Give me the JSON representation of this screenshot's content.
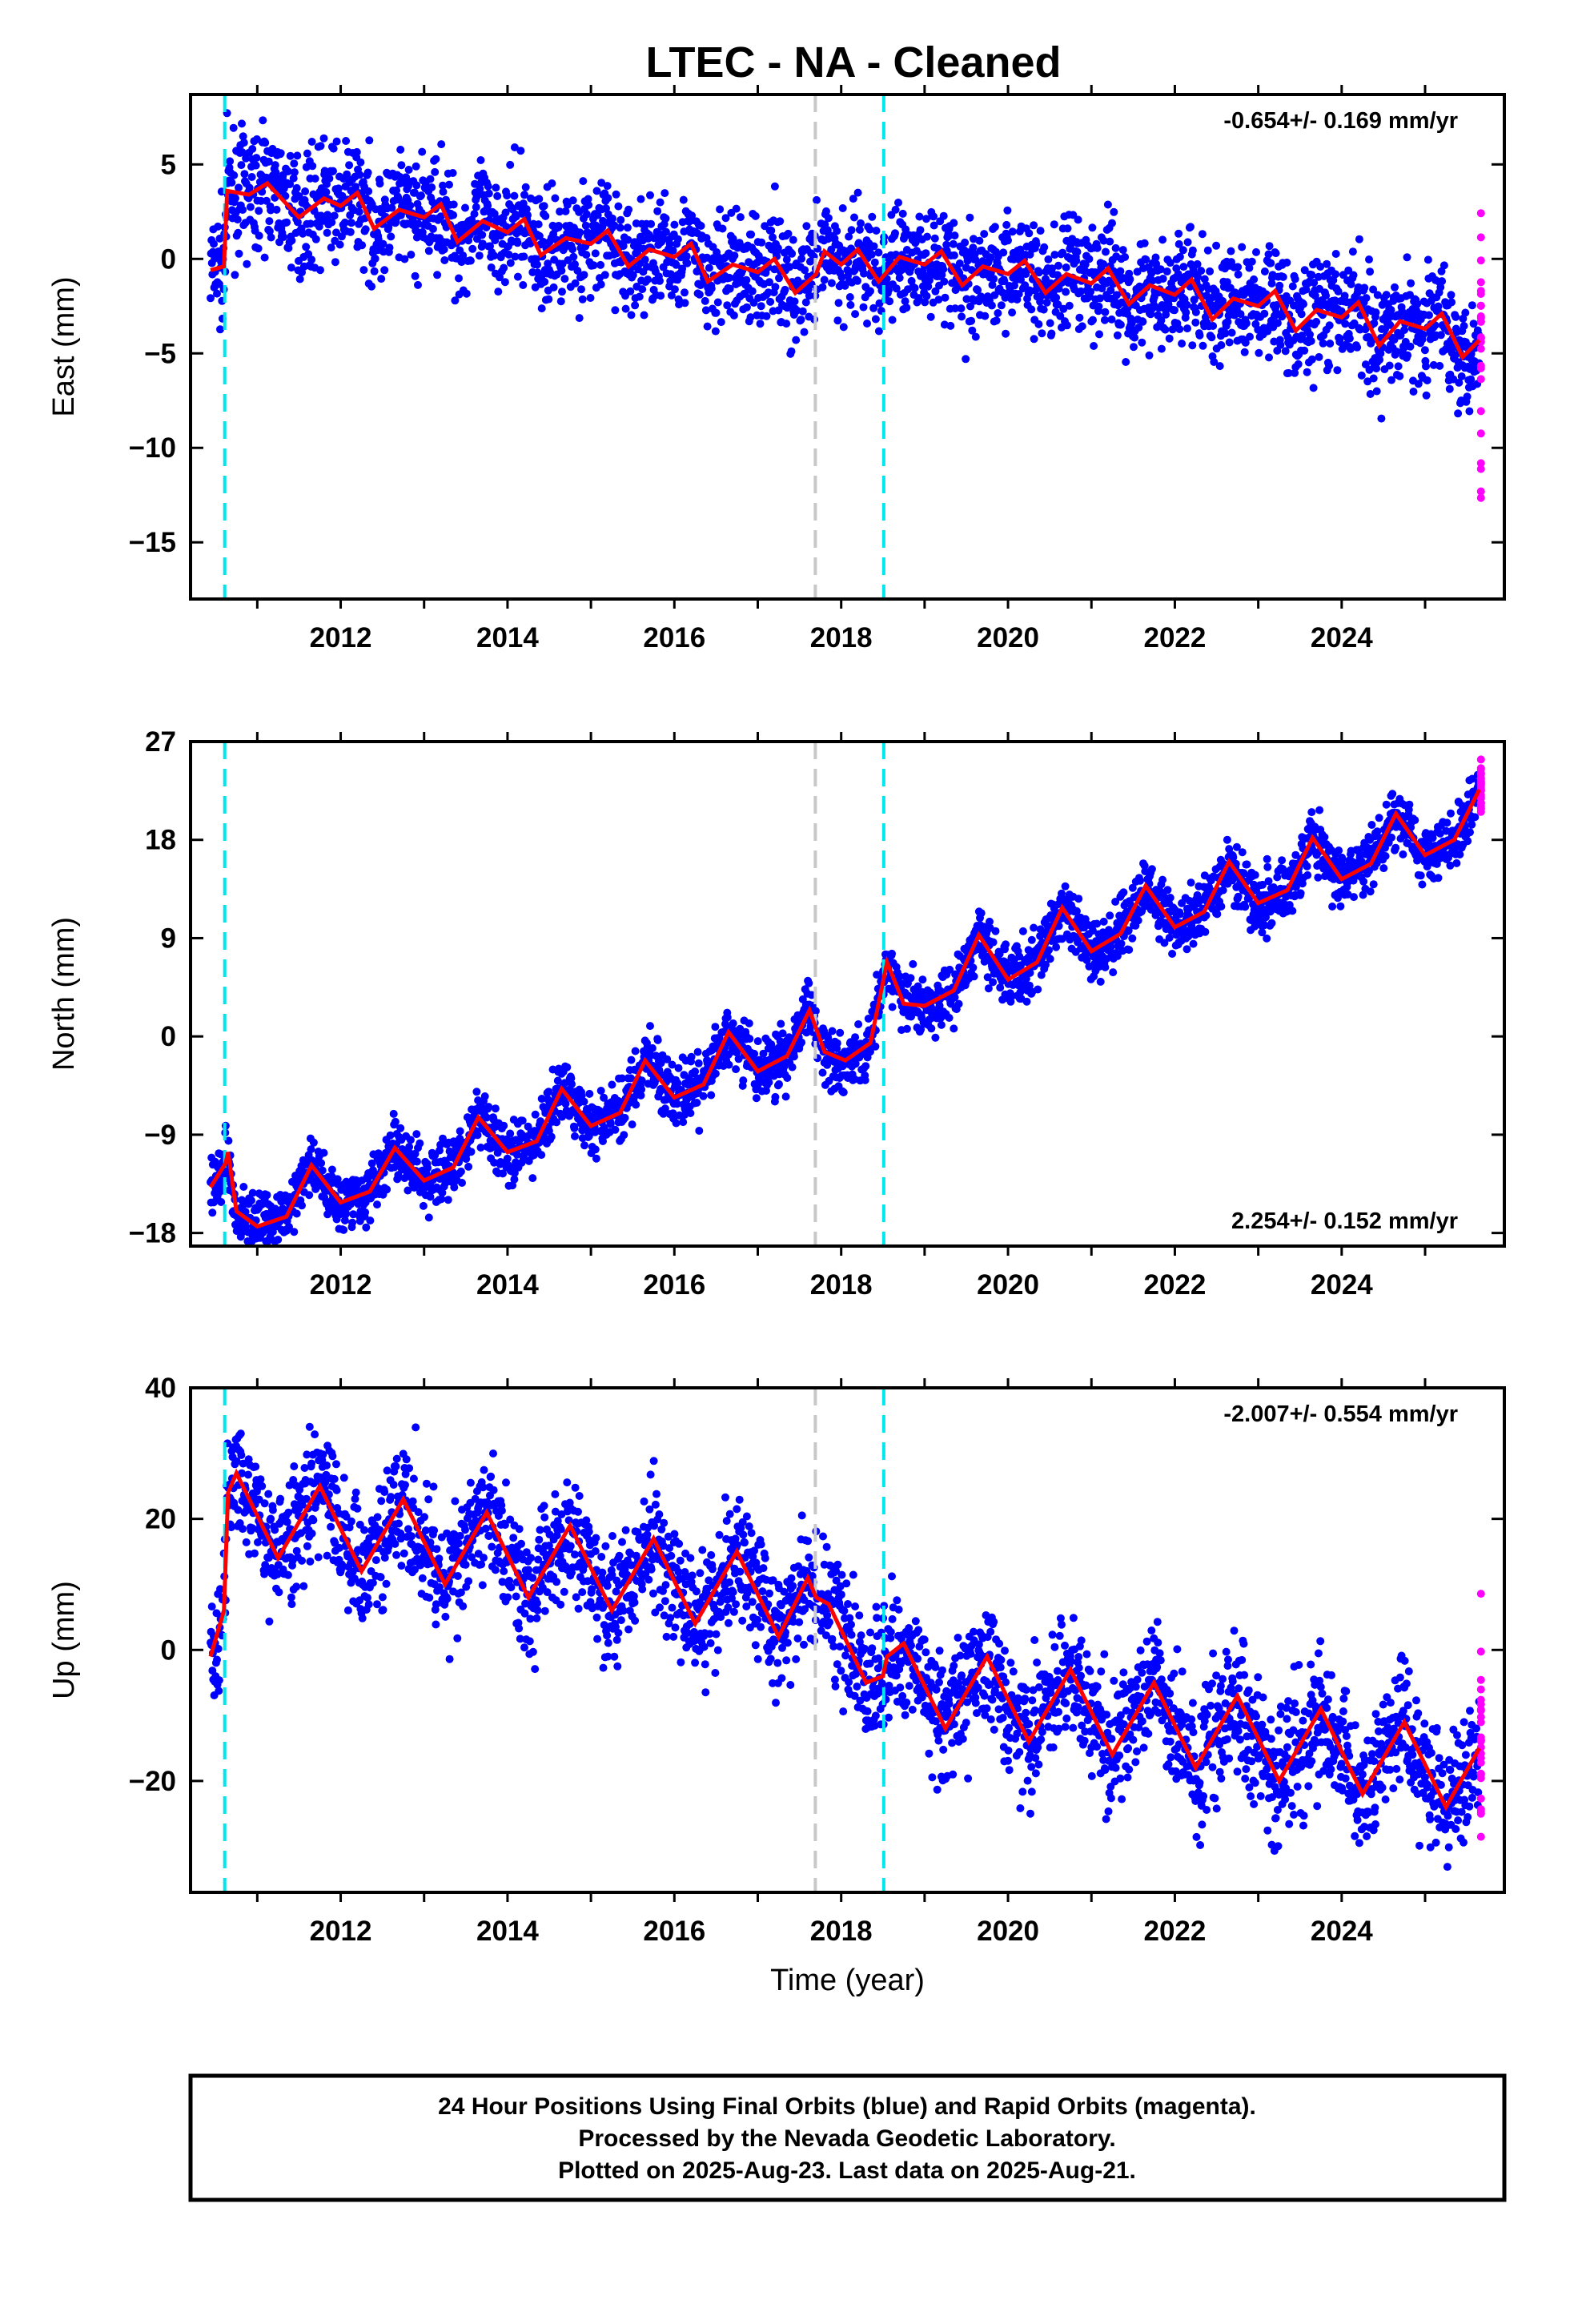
{
  "title": "LTEC  - NA - Cleaned",
  "chart_data": [
    {
      "type": "scatter",
      "panel": "east",
      "ylabel": "East (mm)",
      "xlabel": "",
      "rate_label": "-0.654+/- 0.169 mm/yr",
      "rate_position": "top-right",
      "xlim": [
        2010.2,
        2025.95
      ],
      "ylim": [
        -18,
        8.7
      ],
      "yticks": [
        5,
        0,
        -5,
        -10,
        -15
      ],
      "xticks": [
        2012,
        2014,
        2016,
        2018,
        2020,
        2022,
        2024
      ],
      "xtick_labels": [
        "2012",
        "2014",
        "2016",
        "2018",
        "2020",
        "2022",
        "2024"
      ],
      "grid": false,
      "colors": {
        "final": "#0000ff",
        "rapid": "#ff00ff",
        "model": "#ff0000",
        "equipment_change": "#00e5ee",
        "other_event": "#c8c8c8"
      },
      "model_fit": [
        [
          2010.44,
          -0.6
        ],
        [
          2010.6,
          -0.4
        ],
        [
          2010.64,
          3.6
        ],
        [
          2010.9,
          3.4
        ],
        [
          2011.12,
          4.0
        ],
        [
          2011.5,
          2.2
        ],
        [
          2011.8,
          3.2
        ],
        [
          2012.0,
          2.8
        ],
        [
          2012.2,
          3.5
        ],
        [
          2012.4,
          1.6
        ],
        [
          2012.7,
          2.6
        ],
        [
          2013.0,
          2.2
        ],
        [
          2013.2,
          2.9
        ],
        [
          2013.4,
          0.9
        ],
        [
          2013.7,
          2.0
        ],
        [
          2014.0,
          1.4
        ],
        [
          2014.2,
          2.1
        ],
        [
          2014.4,
          0.2
        ],
        [
          2014.7,
          1.1
        ],
        [
          2015.0,
          0.8
        ],
        [
          2015.2,
          1.5
        ],
        [
          2015.45,
          -0.4
        ],
        [
          2015.7,
          0.5
        ],
        [
          2016.0,
          0.1
        ],
        [
          2016.2,
          0.8
        ],
        [
          2016.4,
          -1.2
        ],
        [
          2016.7,
          -0.3
        ],
        [
          2017.0,
          -0.7
        ],
        [
          2017.2,
          0.0
        ],
        [
          2017.45,
          -1.8
        ],
        [
          2017.7,
          -0.8
        ],
        [
          2017.8,
          0.4
        ],
        [
          2018.0,
          -0.3
        ],
        [
          2018.2,
          0.5
        ],
        [
          2018.45,
          -1.2
        ],
        [
          2018.7,
          0.1
        ],
        [
          2019.0,
          -0.3
        ],
        [
          2019.2,
          0.4
        ],
        [
          2019.45,
          -1.4
        ],
        [
          2019.7,
          -0.4
        ],
        [
          2020.0,
          -0.8
        ],
        [
          2020.2,
          -0.1
        ],
        [
          2020.45,
          -1.8
        ],
        [
          2020.7,
          -0.8
        ],
        [
          2021.0,
          -1.3
        ],
        [
          2021.2,
          -0.5
        ],
        [
          2021.45,
          -2.4
        ],
        [
          2021.7,
          -1.4
        ],
        [
          2022.0,
          -1.9
        ],
        [
          2022.2,
          -1.1
        ],
        [
          2022.45,
          -3.2
        ],
        [
          2022.7,
          -2.1
        ],
        [
          2023.0,
          -2.5
        ],
        [
          2023.2,
          -1.7
        ],
        [
          2023.45,
          -3.8
        ],
        [
          2023.7,
          -2.7
        ],
        [
          2024.0,
          -3.1
        ],
        [
          2024.2,
          -2.3
        ],
        [
          2024.45,
          -4.6
        ],
        [
          2024.7,
          -3.3
        ],
        [
          2025.0,
          -3.7
        ],
        [
          2025.2,
          -2.9
        ],
        [
          2025.45,
          -5.2
        ],
        [
          2025.65,
          -4.3
        ]
      ],
      "event_lines": {
        "equipment_change": [
          2010.61,
          2018.51
        ],
        "other_event": [
          2017.69
        ]
      }
    },
    {
      "type": "scatter",
      "panel": "north",
      "ylabel": "North (mm)",
      "xlabel": "",
      "rate_label": "2.254+/- 0.152 mm/yr",
      "rate_position": "bottom-right",
      "xlim": [
        2010.2,
        2025.95
      ],
      "ylim": [
        -19.2,
        27
      ],
      "yticks": [
        27,
        18,
        9,
        0,
        -9,
        -18
      ],
      "xticks": [
        2012,
        2014,
        2016,
        2018,
        2020,
        2022,
        2024
      ],
      "xtick_labels": [
        "2012",
        "2014",
        "2016",
        "2018",
        "2020",
        "2022",
        "2024"
      ],
      "grid": false,
      "colors": {
        "final": "#0000ff",
        "rapid": "#ff00ff",
        "model": "#ff0000",
        "equipment_change": "#00e5ee",
        "other_event": "#c8c8c8"
      },
      "model_fit": [
        [
          2010.44,
          -13.8
        ],
        [
          2010.62,
          -11.6
        ],
        [
          2010.65,
          -10.6
        ],
        [
          2010.75,
          -16.0
        ],
        [
          2011.0,
          -17.4
        ],
        [
          2011.35,
          -16.5
        ],
        [
          2011.65,
          -11.8
        ],
        [
          2012.0,
          -15.2
        ],
        [
          2012.35,
          -14.2
        ],
        [
          2012.65,
          -10.2
        ],
        [
          2013.0,
          -13.2
        ],
        [
          2013.35,
          -12.0
        ],
        [
          2013.65,
          -7.4
        ],
        [
          2014.0,
          -10.6
        ],
        [
          2014.35,
          -9.6
        ],
        [
          2014.65,
          -4.8
        ],
        [
          2015.0,
          -8.2
        ],
        [
          2015.35,
          -7.0
        ],
        [
          2015.65,
          -2.2
        ],
        [
          2016.0,
          -5.6
        ],
        [
          2016.35,
          -4.4
        ],
        [
          2016.65,
          0.4
        ],
        [
          2017.0,
          -3.2
        ],
        [
          2017.35,
          -1.8
        ],
        [
          2017.62,
          2.4
        ],
        [
          2017.8,
          -1.4
        ],
        [
          2018.05,
          -2.2
        ],
        [
          2018.35,
          -0.6
        ],
        [
          2018.55,
          6.8
        ],
        [
          2018.75,
          3.0
        ],
        [
          2019.0,
          2.8
        ],
        [
          2019.35,
          4.2
        ],
        [
          2019.65,
          9.3
        ],
        [
          2020.0,
          5.2
        ],
        [
          2020.35,
          6.8
        ],
        [
          2020.65,
          11.8
        ],
        [
          2021.0,
          7.8
        ],
        [
          2021.35,
          9.4
        ],
        [
          2021.65,
          13.8
        ],
        [
          2022.0,
          10.0
        ],
        [
          2022.35,
          11.4
        ],
        [
          2022.65,
          16.0
        ],
        [
          2023.0,
          12.2
        ],
        [
          2023.35,
          13.4
        ],
        [
          2023.65,
          18.2
        ],
        [
          2024.0,
          14.4
        ],
        [
          2024.35,
          15.8
        ],
        [
          2024.65,
          20.4
        ],
        [
          2025.0,
          16.6
        ],
        [
          2025.35,
          18.0
        ],
        [
          2025.65,
          22.6
        ]
      ],
      "event_lines": {
        "equipment_change": [
          2010.61,
          2018.51
        ],
        "other_event": [
          2017.69
        ]
      }
    },
    {
      "type": "scatter",
      "panel": "up",
      "ylabel": "Up (mm)",
      "xlabel": "Time (year)",
      "rate_label": "-2.007+/- 0.554 mm/yr",
      "rate_position": "top-right",
      "xlim": [
        2010.2,
        2025.95
      ],
      "ylim": [
        -37,
        40
      ],
      "yticks": [
        40,
        20,
        0,
        -20
      ],
      "xticks": [
        2012,
        2014,
        2016,
        2018,
        2020,
        2022,
        2024
      ],
      "xtick_labels": [
        "2012",
        "2014",
        "2016",
        "2018",
        "2020",
        "2022",
        "2024"
      ],
      "grid": false,
      "colors": {
        "final": "#0000ff",
        "rapid": "#ff00ff",
        "model": "#ff0000",
        "equipment_change": "#00e5ee",
        "other_event": "#c8c8c8"
      },
      "model_fit": [
        [
          2010.44,
          -1.0
        ],
        [
          2010.6,
          6.0
        ],
        [
          2010.65,
          24.0
        ],
        [
          2010.75,
          27.0
        ],
        [
          2011.25,
          14.0
        ],
        [
          2011.75,
          25.0
        ],
        [
          2012.25,
          12.0
        ],
        [
          2012.75,
          23.0
        ],
        [
          2013.25,
          10.0
        ],
        [
          2013.75,
          21.0
        ],
        [
          2014.25,
          8.0
        ],
        [
          2014.75,
          19.0
        ],
        [
          2015.25,
          6.0
        ],
        [
          2015.75,
          17.0
        ],
        [
          2016.25,
          4.0
        ],
        [
          2016.75,
          15.0
        ],
        [
          2017.25,
          2.0
        ],
        [
          2017.6,
          11.0
        ],
        [
          2017.7,
          8.0
        ],
        [
          2017.85,
          7.0
        ],
        [
          2018.3,
          -5.0
        ],
        [
          2018.5,
          -4.0
        ],
        [
          2018.55,
          -1.0
        ],
        [
          2018.75,
          1.0
        ],
        [
          2019.25,
          -12.0
        ],
        [
          2019.75,
          -1.0
        ],
        [
          2020.25,
          -14.0
        ],
        [
          2020.75,
          -3.0
        ],
        [
          2021.25,
          -16.0
        ],
        [
          2021.75,
          -5.0
        ],
        [
          2022.25,
          -18.0
        ],
        [
          2022.75,
          -7.0
        ],
        [
          2023.25,
          -20.0
        ],
        [
          2023.75,
          -9.0
        ],
        [
          2024.25,
          -22.0
        ],
        [
          2024.75,
          -11.0
        ],
        [
          2025.25,
          -24.0
        ],
        [
          2025.65,
          -15.0
        ]
      ],
      "event_lines": {
        "equipment_change": [
          2010.61,
          2018.51
        ],
        "other_event": [
          2017.69
        ]
      }
    }
  ],
  "footer": {
    "line1": "24 Hour Positions Using Final Orbits (blue) and Rapid Orbits (magenta).",
    "line2": "Processed by the Nevada Geodetic Laboratory.",
    "line3": "Plotted on 2025-Aug-23. Last data on 2025-Aug-21."
  }
}
